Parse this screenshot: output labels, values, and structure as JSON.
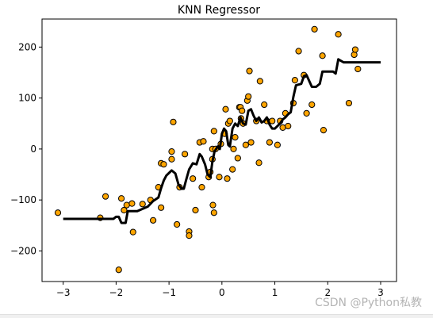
{
  "chart_data": {
    "type": "scatter",
    "title": "KNN Regressor",
    "xlabel": "",
    "ylabel": "",
    "xlim": [
      -3.4,
      3.3
    ],
    "ylim": [
      -260,
      255
    ],
    "xticks": [
      -3,
      -2,
      -1,
      0,
      1,
      2,
      3
    ],
    "yticks": [
      -200,
      -100,
      0,
      100,
      200
    ],
    "grid": false,
    "colors": {
      "points": "#ffa500",
      "point_edge": "#000000",
      "line": "#000000"
    },
    "series": [
      {
        "kind": "scatter",
        "points": [
          [
            -3.1,
            -125
          ],
          [
            -2.3,
            -135
          ],
          [
            -2.2,
            -93
          ],
          [
            -1.95,
            -237
          ],
          [
            -1.9,
            -97
          ],
          [
            -1.85,
            -120
          ],
          [
            -1.8,
            -110
          ],
          [
            -1.7,
            -107
          ],
          [
            -1.68,
            -163
          ],
          [
            -1.5,
            -108
          ],
          [
            -1.35,
            -100
          ],
          [
            -1.3,
            -140
          ],
          [
            -1.2,
            -75
          ],
          [
            -1.15,
            -28
          ],
          [
            -1.15,
            -115
          ],
          [
            -1.1,
            -30
          ],
          [
            -0.95,
            -5
          ],
          [
            -0.95,
            -20
          ],
          [
            -0.92,
            53
          ],
          [
            -0.85,
            -148
          ],
          [
            -0.8,
            -75
          ],
          [
            -0.7,
            -10
          ],
          [
            -0.62,
            -162
          ],
          [
            -0.62,
            -170
          ],
          [
            -0.55,
            -58
          ],
          [
            -0.5,
            -120
          ],
          [
            -0.42,
            13
          ],
          [
            -0.38,
            -75
          ],
          [
            -0.35,
            15
          ],
          [
            -0.25,
            -55
          ],
          [
            -0.22,
            -45
          ],
          [
            -0.18,
            0
          ],
          [
            -0.18,
            -20
          ],
          [
            -0.17,
            -110
          ],
          [
            -0.15,
            -125
          ],
          [
            -0.15,
            35
          ],
          [
            -0.12,
            0
          ],
          [
            -0.05,
            -55
          ],
          [
            -0.02,
            10
          ],
          [
            0.05,
            30
          ],
          [
            0.07,
            78
          ],
          [
            0.1,
            -58
          ],
          [
            0.12,
            50
          ],
          [
            0.15,
            55
          ],
          [
            0.2,
            -40
          ],
          [
            0.22,
            0
          ],
          [
            0.25,
            23
          ],
          [
            0.3,
            -18
          ],
          [
            0.33,
            82
          ],
          [
            0.35,
            82
          ],
          [
            0.36,
            60
          ],
          [
            0.38,
            75
          ],
          [
            0.4,
            50
          ],
          [
            0.45,
            8
          ],
          [
            0.48,
            95
          ],
          [
            0.5,
            103
          ],
          [
            0.52,
            153
          ],
          [
            0.55,
            13
          ],
          [
            0.65,
            55
          ],
          [
            0.7,
            -27
          ],
          [
            0.72,
            133
          ],
          [
            0.8,
            87
          ],
          [
            0.85,
            55
          ],
          [
            0.9,
            13
          ],
          [
            0.95,
            55
          ],
          [
            1.05,
            8
          ],
          [
            1.1,
            55
          ],
          [
            1.15,
            42
          ],
          [
            1.2,
            70
          ],
          [
            1.25,
            45
          ],
          [
            1.35,
            90
          ],
          [
            1.38,
            135
          ],
          [
            1.45,
            192
          ],
          [
            1.55,
            145
          ],
          [
            1.6,
            70
          ],
          [
            1.7,
            87
          ],
          [
            1.75,
            235
          ],
          [
            1.9,
            183
          ],
          [
            1.92,
            37
          ],
          [
            2.2,
            225
          ],
          [
            2.4,
            90
          ],
          [
            2.5,
            185
          ],
          [
            2.52,
            195
          ],
          [
            2.57,
            157
          ]
        ]
      },
      {
        "kind": "line",
        "points": [
          [
            -3.0,
            -137
          ],
          [
            -2.05,
            -137
          ],
          [
            -2.0,
            -133
          ],
          [
            -1.95,
            -133
          ],
          [
            -1.9,
            -145
          ],
          [
            -1.82,
            -145
          ],
          [
            -1.78,
            -122
          ],
          [
            -1.6,
            -122
          ],
          [
            -1.4,
            -113
          ],
          [
            -1.3,
            -102
          ],
          [
            -1.2,
            -95
          ],
          [
            -1.15,
            -77
          ],
          [
            -1.1,
            -62
          ],
          [
            -1.05,
            -52
          ],
          [
            -0.95,
            -42
          ],
          [
            -0.88,
            -48
          ],
          [
            -0.82,
            -70
          ],
          [
            -0.76,
            -78
          ],
          [
            -0.72,
            -78
          ],
          [
            -0.68,
            -62
          ],
          [
            -0.62,
            -40
          ],
          [
            -0.55,
            -28
          ],
          [
            -0.48,
            -30
          ],
          [
            -0.42,
            -10
          ],
          [
            -0.38,
            -15
          ],
          [
            -0.32,
            -30
          ],
          [
            -0.27,
            -50
          ],
          [
            -0.22,
            -55
          ],
          [
            -0.18,
            -25
          ],
          [
            -0.14,
            -5
          ],
          [
            -0.08,
            5
          ],
          [
            -0.04,
            0
          ],
          [
            0.0,
            30
          ],
          [
            0.04,
            40
          ],
          [
            0.08,
            35
          ],
          [
            0.12,
            8
          ],
          [
            0.15,
            5
          ],
          [
            0.2,
            40
          ],
          [
            0.25,
            50
          ],
          [
            0.3,
            45
          ],
          [
            0.35,
            62
          ],
          [
            0.4,
            50
          ],
          [
            0.45,
            48
          ],
          [
            0.5,
            75
          ],
          [
            0.55,
            78
          ],
          [
            0.6,
            65
          ],
          [
            0.65,
            55
          ],
          [
            0.7,
            62
          ],
          [
            0.75,
            52
          ],
          [
            0.8,
            55
          ],
          [
            0.85,
            62
          ],
          [
            0.9,
            48
          ],
          [
            0.95,
            40
          ],
          [
            1.0,
            40
          ],
          [
            1.05,
            45
          ],
          [
            1.1,
            50
          ],
          [
            1.15,
            58
          ],
          [
            1.2,
            62
          ],
          [
            1.25,
            68
          ],
          [
            1.3,
            72
          ],
          [
            1.35,
            102
          ],
          [
            1.4,
            125
          ],
          [
            1.5,
            128
          ],
          [
            1.55,
            143
          ],
          [
            1.6,
            145
          ],
          [
            1.7,
            122
          ],
          [
            1.78,
            122
          ],
          [
            1.85,
            128
          ],
          [
            1.9,
            152
          ],
          [
            2.1,
            152
          ],
          [
            2.15,
            148
          ],
          [
            2.2,
            176
          ],
          [
            2.3,
            170
          ],
          [
            3.0,
            170
          ]
        ]
      }
    ]
  },
  "watermark": "CSDN @Python私教"
}
